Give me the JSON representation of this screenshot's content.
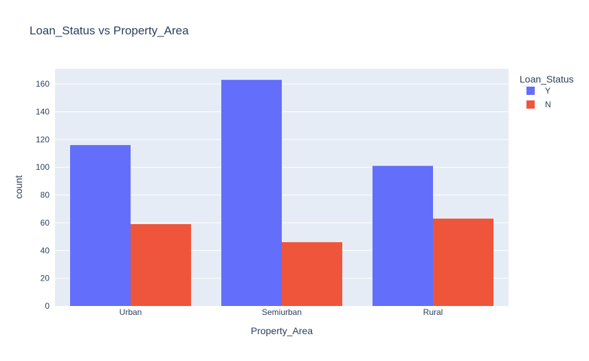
{
  "chart_data": {
    "type": "bar",
    "title": "Loan_Status vs Property_Area",
    "xlabel": "Property_Area",
    "ylabel": "count",
    "categories": [
      "Urban",
      "Semiurban",
      "Rural"
    ],
    "series": [
      {
        "name": "Y",
        "values": [
          116,
          163,
          101
        ],
        "color": "#636efa"
      },
      {
        "name": "N",
        "values": [
          59,
          46,
          63
        ],
        "color": "#ef553b"
      }
    ],
    "ylim": [
      0,
      171
    ],
    "yticks": [
      0,
      20,
      40,
      60,
      80,
      100,
      120,
      140,
      160
    ],
    "grid": true,
    "legend": {
      "title": "Loan_Status",
      "placement": "top-right"
    },
    "plot_bg": "#e5ecf6"
  }
}
